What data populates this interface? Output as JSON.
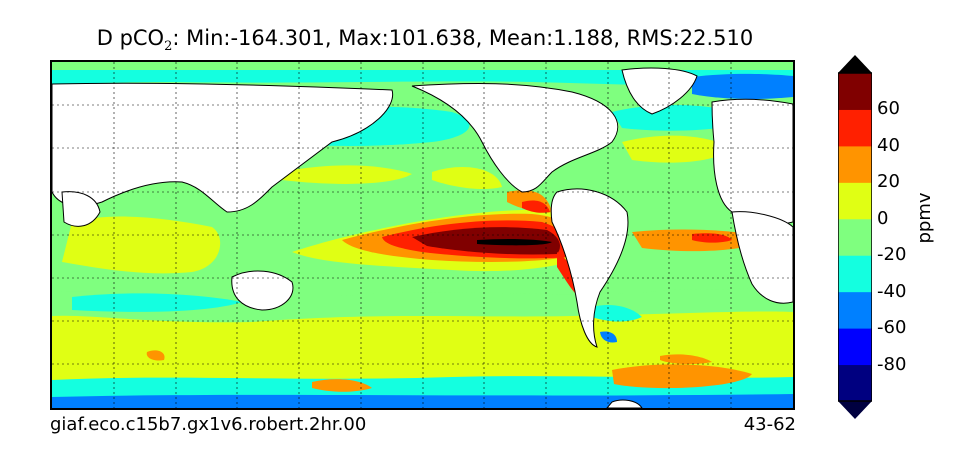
{
  "title": {
    "prefix": "D pCO",
    "subscript": "2",
    "stats": ": Min:-164.301, Max:101.638, Mean:1.188, RMS:22.510"
  },
  "footer": {
    "run_name": "giaf.eco.c15b7.gx1v6.robert.2hr.00",
    "years": "43-62"
  },
  "colorbar": {
    "unit": "ppmv",
    "ticks": [
      "60",
      "40",
      "20",
      "0",
      "-20",
      "-40",
      "-60",
      "-80"
    ],
    "colors": [
      "#000080",
      "#0000ff",
      "#0080ff",
      "#14ffe0",
      "#7fff7f",
      "#e0ff14",
      "#ff9400",
      "#ff2000",
      "#800000"
    ],
    "extend_low_color": "#000040",
    "extend_high_color": "#000000"
  },
  "map": {
    "land_color": "#ffffff",
    "ocean_base_color": "#7fff7f",
    "grid": true
  }
}
